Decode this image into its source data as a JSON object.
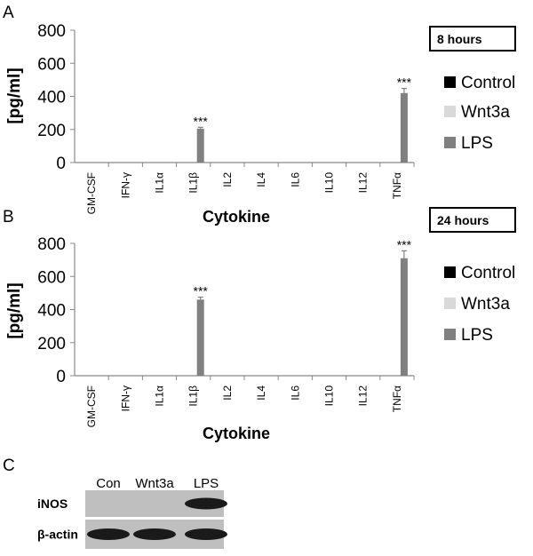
{
  "panels": {
    "a": "A",
    "b": "B",
    "c": "C"
  },
  "chart_data": [
    {
      "type": "bar",
      "panel": "A",
      "time_label": "8 hours",
      "categories": [
        "GM-CSF",
        "IFN-γ",
        "IL1α",
        "IL1β",
        "IL2",
        "IL4",
        "IL6",
        "IL10",
        "IL12",
        "TNFα"
      ],
      "series": [
        {
          "name": "Control",
          "color": "#000000",
          "values": [
            0,
            0,
            0,
            0,
            0,
            0,
            0,
            0,
            0,
            0
          ]
        },
        {
          "name": "Wnt3a",
          "color": "#d9d9d9",
          "values": [
            0,
            0,
            0,
            0,
            0,
            0,
            0,
            0,
            0,
            0
          ]
        },
        {
          "name": "LPS",
          "color": "#808080",
          "values": [
            0,
            0,
            0,
            205,
            0,
            0,
            0,
            0,
            0,
            420
          ],
          "errors": [
            0,
            0,
            0,
            8,
            0,
            0,
            0,
            0,
            0,
            28
          ]
        }
      ],
      "annotations": [
        {
          "category": "IL1β",
          "text": "***"
        },
        {
          "category": "TNFα",
          "text": "***"
        }
      ],
      "ylim": [
        0,
        800
      ],
      "yticks": [
        0,
        200,
        400,
        600,
        800
      ],
      "ylabel": "[pg/ml]",
      "xlabel": "Cytokine",
      "legend_position": "right"
    },
    {
      "type": "bar",
      "panel": "B",
      "time_label": "24 hours",
      "categories": [
        "GM-CSF",
        "IFN-γ",
        "IL1α",
        "IL1β",
        "IL2",
        "IL4",
        "IL6",
        "IL10",
        "IL12",
        "TNFα"
      ],
      "series": [
        {
          "name": "Control",
          "color": "#000000",
          "values": [
            0,
            0,
            0,
            0,
            0,
            0,
            0,
            0,
            0,
            0
          ]
        },
        {
          "name": "Wnt3a",
          "color": "#d9d9d9",
          "values": [
            0,
            0,
            0,
            0,
            0,
            0,
            0,
            0,
            0,
            0
          ]
        },
        {
          "name": "LPS",
          "color": "#808080",
          "values": [
            0,
            0,
            0,
            460,
            0,
            0,
            0,
            0,
            0,
            710
          ],
          "errors": [
            0,
            0,
            0,
            15,
            0,
            0,
            0,
            0,
            0,
            45
          ]
        }
      ],
      "annotations": [
        {
          "category": "IL1β",
          "text": "***"
        },
        {
          "category": "TNFα",
          "text": "***"
        }
      ],
      "ylim": [
        0,
        800
      ],
      "yticks": [
        0,
        200,
        400,
        600,
        800
      ],
      "ylabel": "[pg/ml]",
      "xlabel": "Cytokine",
      "legend_position": "right"
    }
  ],
  "blot": {
    "lanes": [
      "Con",
      "Wnt3a",
      "LPS"
    ],
    "rows": [
      {
        "label": "iNOS",
        "band_intensity": [
          0,
          0,
          1
        ]
      },
      {
        "label": "β-actin",
        "band_intensity": [
          1,
          1,
          1
        ]
      }
    ]
  }
}
